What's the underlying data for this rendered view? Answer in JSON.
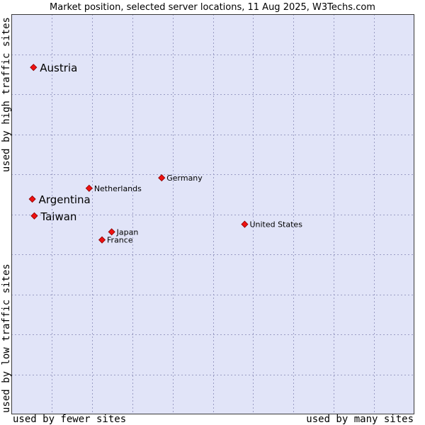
{
  "chart_data": {
    "type": "scatter",
    "title": "Market position, selected server locations, 11 Aug 2025, W3Techs.com",
    "xlabel_left": "used by fewer sites",
    "xlabel_right": "used by many sites",
    "ylabel_bottom": "used by low traffic sites",
    "ylabel_top": "used by high traffic sites",
    "xlim": [
      0,
      100
    ],
    "ylim": [
      0,
      100
    ],
    "grid": true,
    "colors": {
      "plot_background": "#e1e4f8",
      "grid": "#9a9cc4",
      "frame": "#3a3a3a",
      "marker_fill": "#ee1111",
      "marker_stroke": "#880000"
    },
    "points": [
      {
        "label": "Austria",
        "x": 5.5,
        "y": 86.7,
        "emphasis": "large"
      },
      {
        "label": "Argentina",
        "x": 5.2,
        "y": 53.8,
        "emphasis": "large"
      },
      {
        "label": "Taiwan",
        "x": 5.7,
        "y": 49.6,
        "emphasis": "large"
      },
      {
        "label": "Netherlands",
        "x": 19.3,
        "y": 56.5,
        "emphasis": "small"
      },
      {
        "label": "Germany",
        "x": 37.3,
        "y": 59.1,
        "emphasis": "small"
      },
      {
        "label": "Japan",
        "x": 24.9,
        "y": 45.6,
        "emphasis": "small"
      },
      {
        "label": "France",
        "x": 22.5,
        "y": 43.6,
        "emphasis": "small"
      },
      {
        "label": "United States",
        "x": 57.9,
        "y": 47.5,
        "emphasis": "small"
      }
    ]
  }
}
